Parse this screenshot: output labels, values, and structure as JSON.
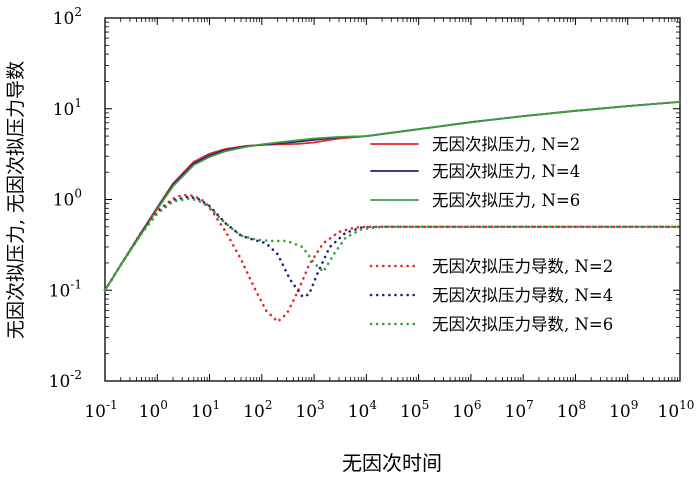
{
  "chart_data": {
    "type": "line",
    "xscale": "log",
    "yscale": "log",
    "xlim": [
      0.1,
      10000000000
    ],
    "ylim": [
      0.01,
      100
    ],
    "xlabel": "无因次时间",
    "ylabel": "无因次拟压力, 无因次拟压力导数",
    "x_tick_exponents": [
      -1,
      0,
      1,
      2,
      3,
      4,
      5,
      6,
      7,
      8,
      9,
      10
    ],
    "y_tick_exponents": [
      -2,
      -1,
      0,
      1,
      2
    ],
    "tick_base": "10",
    "legend_position": "center-right",
    "series": [
      {
        "name": "无因次拟压力, N=2",
        "kind": "pressure",
        "style": "solid",
        "color": "#e8262a",
        "x": [
          0.1,
          0.2,
          0.5,
          1,
          2,
          5,
          10,
          20,
          50,
          100,
          200,
          500,
          1000,
          3000,
          10000,
          100000,
          1000000,
          10000000,
          100000000,
          1000000000,
          10000000000
        ],
        "y": [
          0.1,
          0.19,
          0.44,
          0.82,
          1.5,
          2.6,
          3.2,
          3.6,
          3.9,
          4.0,
          4.05,
          4.1,
          4.25,
          4.7,
          5.0,
          5.95,
          7.1,
          8.3,
          9.5,
          10.7,
          11.9
        ]
      },
      {
        "name": "无因次拟压力, N=4",
        "kind": "pressure",
        "style": "solid",
        "color": "#2b1e7c",
        "x": [
          0.1,
          0.2,
          0.5,
          1,
          2,
          5,
          10,
          20,
          50,
          100,
          200,
          500,
          1000,
          3000,
          10000,
          100000,
          1000000,
          10000000,
          100000000,
          1000000000,
          10000000000
        ],
        "y": [
          0.1,
          0.19,
          0.43,
          0.8,
          1.45,
          2.5,
          3.05,
          3.5,
          3.85,
          4.0,
          4.15,
          4.35,
          4.55,
          4.85,
          5.0,
          5.95,
          7.1,
          8.3,
          9.5,
          10.7,
          11.9
        ]
      },
      {
        "name": "无因次拟压力, N=6",
        "kind": "pressure",
        "style": "solid",
        "color": "#3aa13a",
        "x": [
          0.1,
          0.2,
          0.5,
          1,
          2,
          5,
          10,
          20,
          50,
          100,
          200,
          500,
          1000,
          3000,
          10000,
          100000,
          1000000,
          10000000,
          100000000,
          1000000000,
          10000000000
        ],
        "y": [
          0.1,
          0.19,
          0.42,
          0.78,
          1.4,
          2.4,
          2.95,
          3.4,
          3.8,
          4.05,
          4.25,
          4.5,
          4.7,
          4.9,
          5.0,
          5.95,
          7.1,
          8.3,
          9.5,
          10.7,
          11.9
        ]
      },
      {
        "name": "无因次拟压力导数, N=2",
        "kind": "derivative",
        "style": "dotted",
        "color": "#e8262a",
        "x": [
          0.1,
          0.2,
          0.5,
          1,
          2,
          3,
          5,
          8,
          12,
          20,
          40,
          70,
          120,
          200,
          300,
          500,
          800,
          1500,
          3000,
          6000,
          10000,
          100000,
          10000000000
        ],
        "y": [
          0.1,
          0.19,
          0.44,
          0.75,
          1.02,
          1.12,
          1.1,
          0.95,
          0.7,
          0.45,
          0.22,
          0.11,
          0.06,
          0.045,
          0.055,
          0.1,
          0.19,
          0.33,
          0.44,
          0.49,
          0.5,
          0.5,
          0.5
        ]
      },
      {
        "name": "无因次拟压力导数, N=4",
        "kind": "derivative",
        "style": "dotted",
        "color": "#2b1e7c",
        "x": [
          0.1,
          0.2,
          0.5,
          1,
          2,
          4,
          6,
          10,
          20,
          40,
          70,
          120,
          200,
          350,
          600,
          800,
          1200,
          2000,
          4000,
          8000,
          20000,
          100000,
          10000000000
        ],
        "y": [
          0.1,
          0.19,
          0.43,
          0.72,
          0.98,
          1.07,
          1.02,
          0.85,
          0.55,
          0.4,
          0.36,
          0.33,
          0.25,
          0.13,
          0.085,
          0.09,
          0.16,
          0.3,
          0.43,
          0.49,
          0.5,
          0.5,
          0.5
        ]
      },
      {
        "name": "无因次拟压力导数, N=6",
        "kind": "derivative",
        "style": "dotted",
        "color": "#3aa13a",
        "x": [
          0.1,
          0.2,
          0.5,
          1,
          2,
          4,
          6,
          10,
          20,
          40,
          80,
          150,
          300,
          600,
          1000,
          1500,
          2500,
          4000,
          8000,
          20000,
          100000,
          10000000000
        ],
        "y": [
          0.1,
          0.19,
          0.42,
          0.7,
          0.95,
          1.02,
          0.98,
          0.82,
          0.55,
          0.4,
          0.36,
          0.35,
          0.35,
          0.3,
          0.2,
          0.16,
          0.26,
          0.38,
          0.47,
          0.5,
          0.5,
          0.5
        ]
      }
    ]
  }
}
